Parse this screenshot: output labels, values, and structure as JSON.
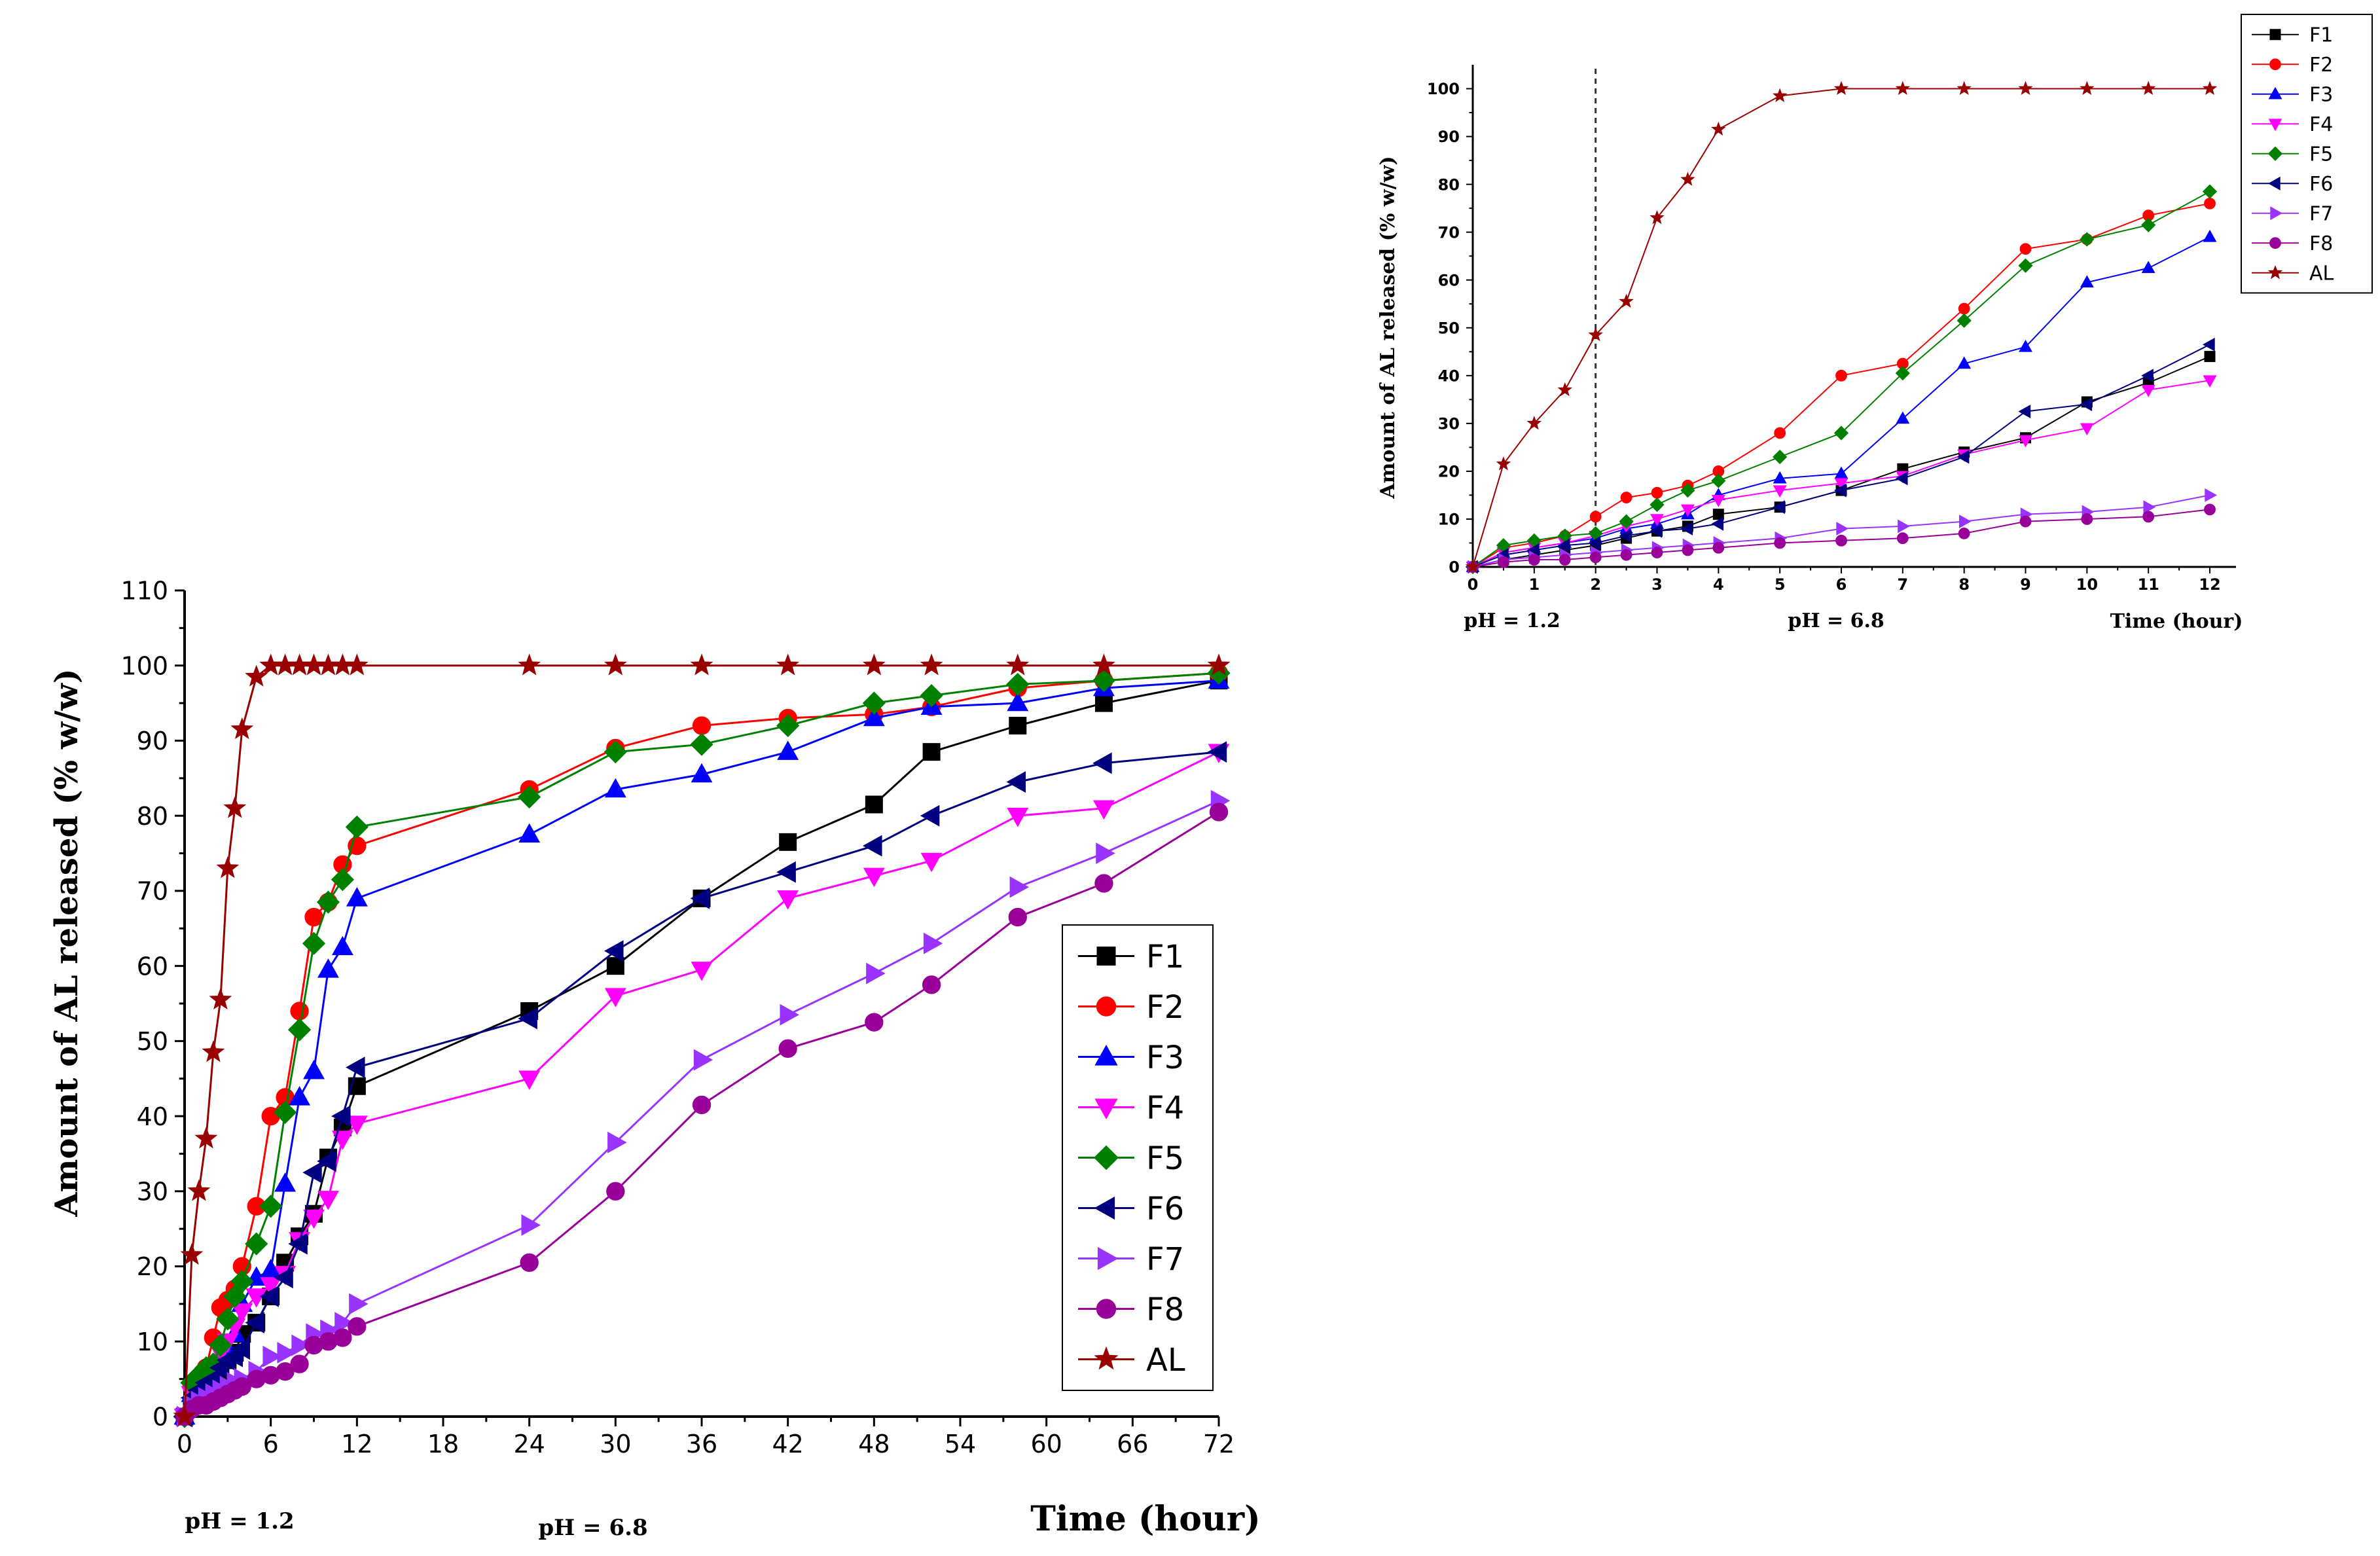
{
  "chart_data": [
    {
      "id": "main",
      "type": "line",
      "title": "",
      "xlabel": "Time (hour)",
      "ylabel": "Amount of AL released (% w/w)",
      "xlim": [
        0,
        72
      ],
      "ylim": [
        0,
        110
      ],
      "xticks": [
        "0",
        "6",
        "12",
        "18",
        "24",
        "30",
        "36",
        "42",
        "48",
        "54",
        "60",
        "66",
        "72"
      ],
      "yticks": [
        "0",
        "10",
        "20",
        "30",
        "40",
        "50",
        "60",
        "70",
        "80",
        "90",
        "100",
        "110"
      ],
      "annotations": [
        "pH = 1.2",
        "pH = 6.8"
      ],
      "legend_position": "bottom-right",
      "series": [
        {
          "name": "F1",
          "color": "#000000",
          "marker": "square",
          "x": [
            0,
            0.5,
            1,
            1.5,
            2,
            2.5,
            3,
            3.5,
            4,
            5,
            6,
            7,
            8,
            9,
            10,
            11,
            12,
            24,
            30,
            36,
            42,
            48,
            52,
            58,
            64,
            72
          ],
          "y": [
            0,
            1.5,
            2.5,
            3.5,
            4.5,
            6,
            7.5,
            8.5,
            11,
            12.5,
            16,
            20.5,
            24,
            27,
            34.5,
            38.5,
            44,
            54,
            60,
            69,
            76.5,
            81.5,
            88.5,
            92,
            95,
            98
          ]
        },
        {
          "name": "F2",
          "color": "#ff0000",
          "marker": "circle",
          "x": [
            0,
            0.5,
            1,
            1.5,
            2,
            2.5,
            3,
            3.5,
            4,
            5,
            6,
            7,
            8,
            9,
            10,
            11,
            12,
            24,
            30,
            36,
            42,
            48,
            52,
            58,
            64,
            72
          ],
          "y": [
            0,
            4,
            5,
            6.5,
            10.5,
            14.5,
            15.5,
            17,
            20,
            28,
            40,
            42.5,
            54,
            66.5,
            68.5,
            73.5,
            76,
            83.5,
            89,
            92,
            93,
            93.5,
            94.5,
            97,
            98,
            99
          ]
        },
        {
          "name": "F3",
          "color": "#0000ff",
          "marker": "triangle-up",
          "x": [
            0,
            0.5,
            1,
            1.5,
            2,
            2.5,
            3,
            3.5,
            4,
            5,
            6,
            7,
            8,
            9,
            10,
            11,
            12,
            24,
            30,
            36,
            42,
            48,
            52,
            58,
            64,
            72
          ],
          "y": [
            0,
            3,
            4,
            5,
            6,
            8,
            9,
            11,
            15,
            18.5,
            19.5,
            31,
            42.5,
            46,
            59.5,
            62.5,
            69,
            77.5,
            83.5,
            85.5,
            88.5,
            93,
            94.5,
            95,
            97,
            98
          ]
        },
        {
          "name": "F4",
          "color": "#ff00ff",
          "marker": "triangle-down",
          "x": [
            0,
            0.5,
            1,
            1.5,
            2,
            2.5,
            3,
            3.5,
            4,
            5,
            6,
            7,
            8,
            9,
            10,
            11,
            12,
            24,
            30,
            36,
            42,
            48,
            52,
            58,
            64,
            72
          ],
          "y": [
            0,
            3,
            4,
            5,
            6.5,
            8.5,
            10,
            12,
            14,
            16,
            17.5,
            19,
            23.5,
            26.5,
            29,
            37,
            39,
            45,
            56,
            59.5,
            69,
            72,
            74,
            80,
            81,
            88.5
          ]
        },
        {
          "name": "F5",
          "color": "#008000",
          "marker": "diamond",
          "x": [
            0,
            0.5,
            1,
            1.5,
            2,
            2.5,
            3,
            3.5,
            4,
            5,
            6,
            7,
            8,
            9,
            10,
            11,
            12,
            24,
            30,
            36,
            42,
            48,
            52,
            58,
            64,
            72
          ],
          "y": [
            0,
            4.5,
            5.5,
            6.5,
            7,
            9.5,
            13,
            16,
            18,
            23,
            28,
            40.5,
            51.5,
            63,
            68.5,
            71.5,
            78.5,
            82.5,
            88.5,
            89.5,
            92,
            95,
            96,
            97.5,
            98,
            99
          ]
        },
        {
          "name": "F6",
          "color": "#000080",
          "marker": "triangle-left",
          "x": [
            0,
            0.5,
            1,
            1.5,
            2,
            2.5,
            3,
            3.5,
            4,
            5,
            6,
            7,
            8,
            9,
            10,
            11,
            12,
            24,
            30,
            36,
            42,
            48,
            52,
            58,
            64,
            72
          ],
          "y": [
            0,
            2.5,
            3.5,
            4.5,
            5,
            6.5,
            7.5,
            8,
            9,
            12.5,
            16,
            18.5,
            23,
            32.5,
            34,
            40,
            46.5,
            53,
            62,
            69,
            72.5,
            76,
            80,
            84.5,
            87,
            88.5
          ]
        },
        {
          "name": "F7",
          "color": "#9933ff",
          "marker": "triangle-right",
          "x": [
            0,
            0.5,
            1,
            1.5,
            2,
            2.5,
            3,
            3.5,
            4,
            5,
            6,
            7,
            8,
            9,
            10,
            11,
            12,
            24,
            30,
            36,
            42,
            48,
            52,
            58,
            64,
            72
          ],
          "y": [
            0,
            1.5,
            2,
            2.5,
            3,
            3.5,
            4,
            4.5,
            5,
            6,
            8,
            8.5,
            9.5,
            11,
            11.5,
            12.5,
            15,
            25.5,
            36.5,
            47.5,
            53.5,
            59,
            63,
            70.5,
            75,
            82
          ]
        },
        {
          "name": "F8",
          "color": "#990099",
          "marker": "circle",
          "x": [
            0,
            0.5,
            1,
            1.5,
            2,
            2.5,
            3,
            3.5,
            4,
            5,
            6,
            7,
            8,
            9,
            10,
            11,
            12,
            24,
            30,
            36,
            42,
            48,
            52,
            58,
            64,
            72
          ],
          "y": [
            0,
            1,
            1.5,
            1.5,
            2,
            2.5,
            3,
            3.5,
            4,
            5,
            5.5,
            6,
            7,
            9.5,
            10,
            10.5,
            12,
            20.5,
            30,
            41.5,
            49,
            52.5,
            57.5,
            66.5,
            71,
            80.5
          ]
        },
        {
          "name": "AL",
          "color": "#990000",
          "marker": "star",
          "x": [
            0,
            0.5,
            1,
            1.5,
            2,
            2.5,
            3,
            3.5,
            4,
            5,
            6,
            7,
            8,
            9,
            10,
            11,
            12,
            24,
            30,
            36,
            42,
            48,
            52,
            58,
            64,
            72
          ],
          "y": [
            0,
            21.5,
            30,
            37,
            48.5,
            55.5,
            73,
            81,
            91.5,
            98.5,
            100,
            100,
            100,
            100,
            100,
            100,
            100,
            100,
            100,
            100,
            100,
            100,
            100,
            100,
            100,
            100
          ]
        }
      ]
    },
    {
      "id": "inset",
      "type": "line",
      "title": "",
      "xlabel": "Time (hour)",
      "ylabel": "Amount of AL released (% w/w)",
      "xlim": [
        0,
        12
      ],
      "ylim": [
        0,
        105
      ],
      "xticks": [
        "0",
        "1",
        "2",
        "3",
        "4",
        "5",
        "6",
        "7",
        "8",
        "9",
        "10",
        "11",
        "12"
      ],
      "yticks": [
        "0",
        "10",
        "20",
        "30",
        "40",
        "50",
        "60",
        "70",
        "80",
        "90",
        "100"
      ],
      "annotations": [
        "pH = 1.2",
        "pH = 6.8"
      ],
      "divider_x": 2,
      "legend_position": "top-right",
      "series_ref": "main",
      "x_max": 12
    }
  ]
}
